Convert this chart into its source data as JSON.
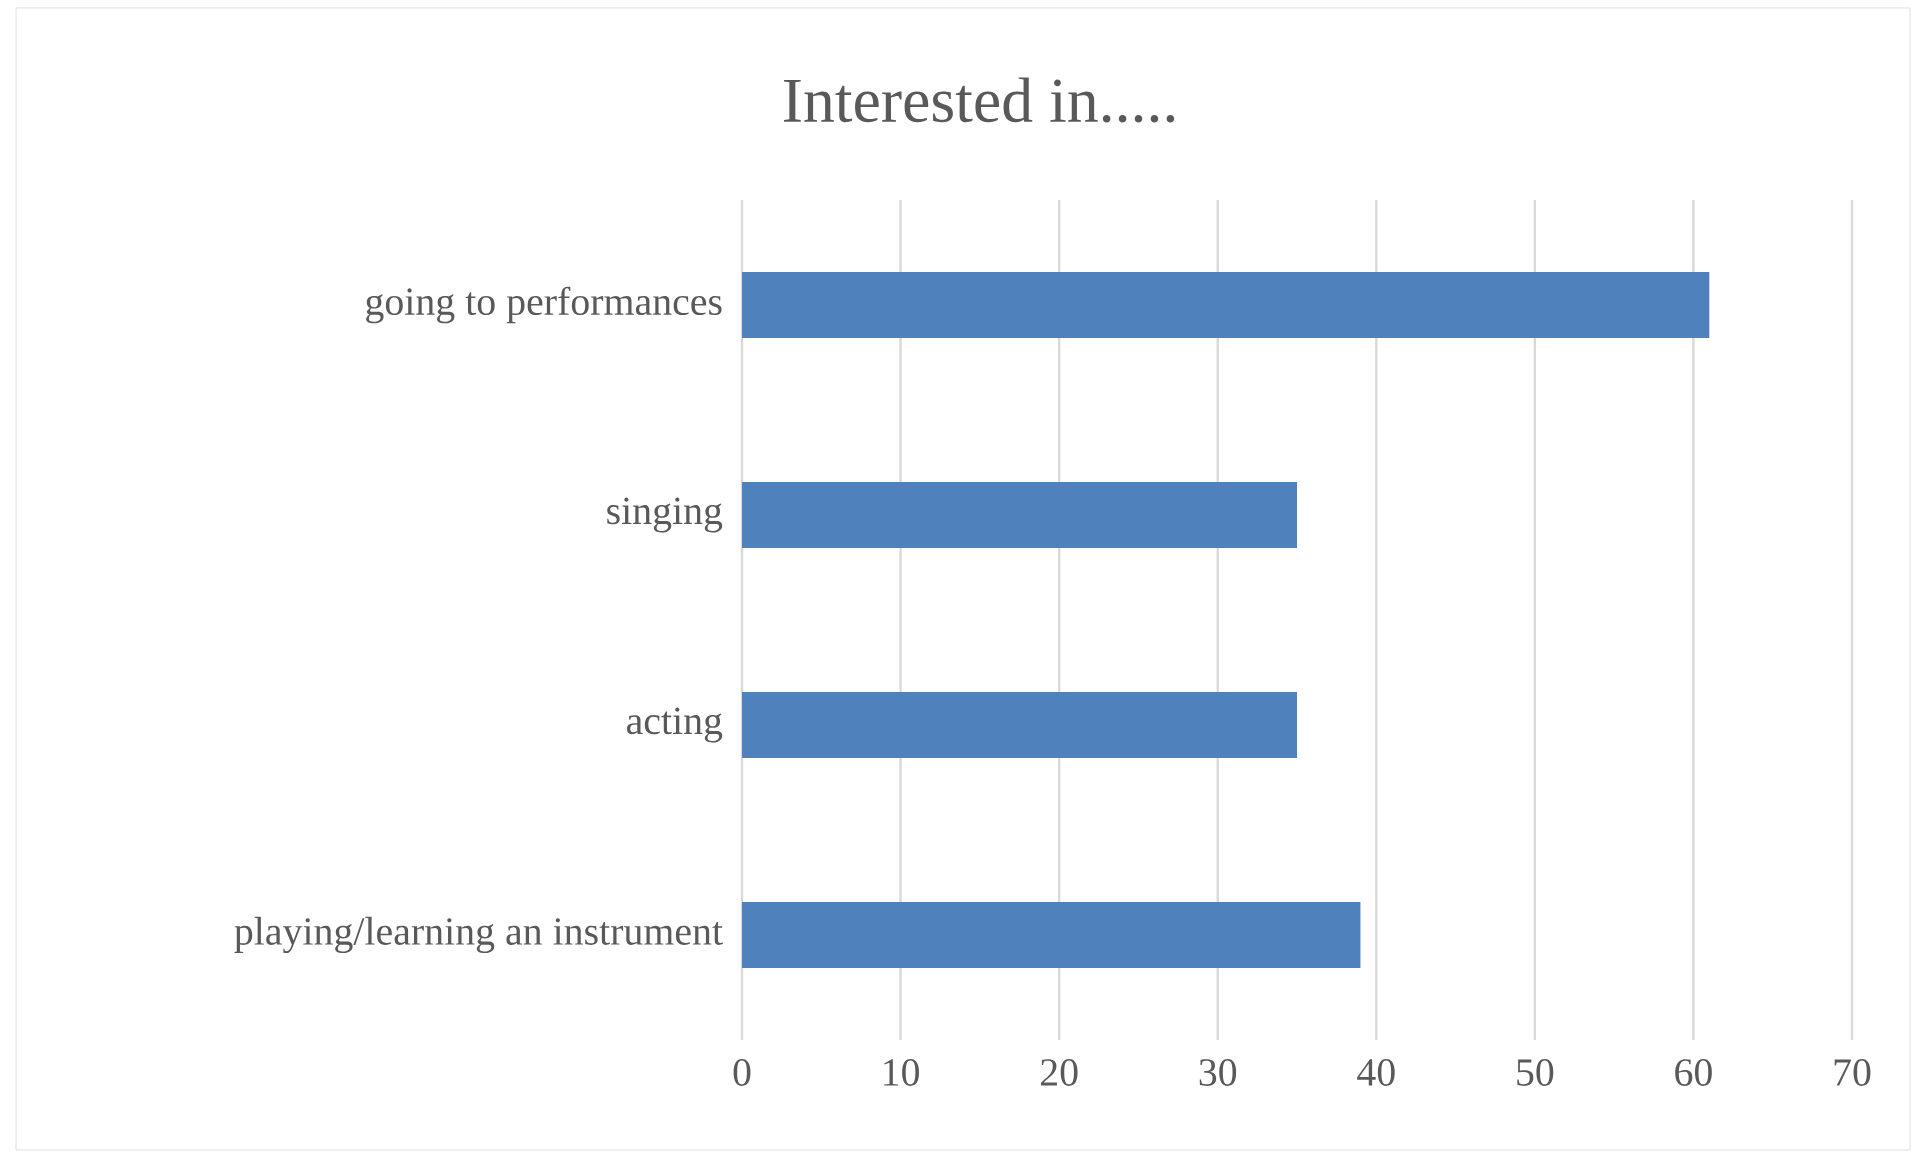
{
  "chart_data": {
    "type": "bar",
    "orientation": "horizontal",
    "title": "Interested in.....",
    "categories": [
      "going to performances",
      "singing",
      "acting",
      "playing/learning an instrument"
    ],
    "values": [
      61,
      35,
      35,
      39
    ],
    "color": "#4f81bd",
    "xlim": [
      0,
      70
    ],
    "xticks": [
      0,
      10,
      20,
      30,
      40,
      50,
      60,
      70
    ],
    "grid": "x"
  }
}
